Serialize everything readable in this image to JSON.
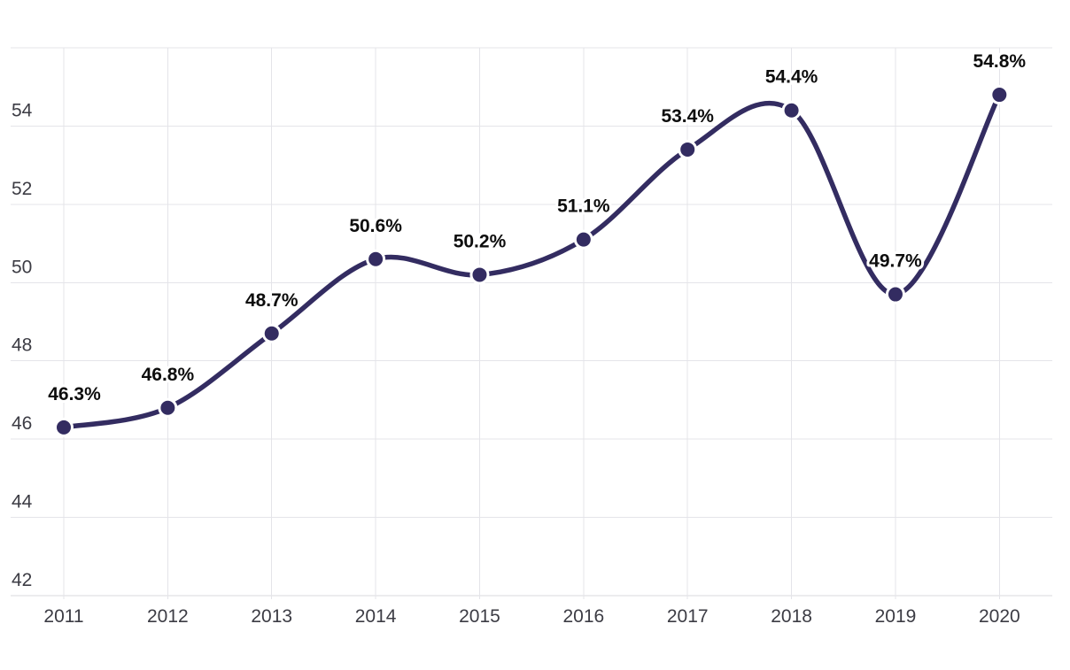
{
  "chart_data": {
    "type": "line",
    "title": "",
    "categories": [
      "2011",
      "2012",
      "2013",
      "2014",
      "2015",
      "2016",
      "2017",
      "2018",
      "2019",
      "2020"
    ],
    "values": [
      46.3,
      46.8,
      48.7,
      50.6,
      50.2,
      51.1,
      53.4,
      54.4,
      49.7,
      54.8
    ],
    "point_labels": [
      "46.3%",
      "46.8%",
      "48.7%",
      "50.6%",
      "50.2%",
      "51.1%",
      "53.4%",
      "54.4%",
      "49.7%",
      "54.8%"
    ],
    "xlabel": "",
    "ylabel": "",
    "ytick_labels": [
      "42",
      "44",
      "46",
      "48",
      "50",
      "52",
      "54"
    ],
    "yticks": [
      42,
      44,
      46,
      48,
      50,
      52,
      54
    ],
    "ylim": [
      42,
      56
    ],
    "grid": "on",
    "legend": "none",
    "smoothing": "spline",
    "colors": {
      "line": "#332c61",
      "point_fill": "#332c61",
      "point_ring": "#ffffff",
      "grid": "#e4e4e9",
      "axis_line": "#dadade",
      "data_label": "#0d0d0d",
      "axis_label": "#3c3c44",
      "background": "#ffffff"
    }
  }
}
